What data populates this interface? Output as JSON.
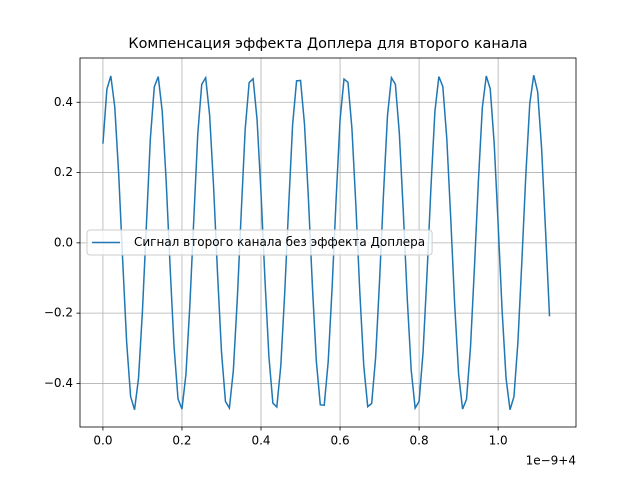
{
  "chart_data": {
    "type": "line",
    "title": "Компенсация эффекта Доплера для  второго канала",
    "x_offset_label": "1e−9+4",
    "x": [
      0,
      0.01,
      0.02,
      0.03,
      0.04,
      0.05,
      0.06,
      0.07,
      0.08,
      0.09,
      0.1,
      0.11,
      0.12,
      0.13,
      0.14,
      0.15,
      0.16,
      0.17,
      0.18,
      0.19,
      0.2,
      0.21,
      0.22,
      0.23,
      0.24,
      0.25,
      0.26,
      0.27,
      0.28,
      0.29,
      0.3,
      0.31,
      0.32,
      0.33,
      0.34,
      0.35,
      0.36,
      0.37,
      0.38,
      0.39,
      0.4,
      0.41,
      0.42,
      0.43,
      0.44,
      0.45,
      0.46,
      0.47,
      0.48,
      0.49,
      0.5,
      0.51,
      0.52,
      0.53,
      0.54,
      0.55,
      0.56,
      0.57,
      0.58,
      0.59,
      0.6,
      0.61,
      0.62,
      0.63,
      0.64,
      0.65,
      0.66,
      0.67,
      0.68,
      0.69,
      0.7,
      0.71,
      0.72,
      0.73,
      0.74,
      0.75,
      0.76,
      0.77,
      0.78,
      0.79,
      0.8,
      0.81,
      0.82,
      0.83,
      0.84,
      0.85,
      0.86,
      0.87,
      0.88,
      0.89,
      0.9,
      0.91,
      0.92,
      0.93,
      0.94,
      0.95,
      0.96,
      0.97,
      0.98,
      0.99,
      1,
      1.01,
      1.02,
      1.03,
      1.04,
      1.05,
      1.06,
      1.07,
      1.08,
      1.09,
      1.1,
      1.11,
      1.12,
      1.13
    ],
    "series": [
      {
        "name": "Сигнал второго канала без эффекта Доплера",
        "color": "#1f77b4",
        "values": [
          0.282,
          0.437,
          0.475,
          0.386,
          0.194,
          -0.051,
          -0.282,
          -0.437,
          -0.475,
          -0.386,
          -0.194,
          0.051,
          0.296,
          0.444,
          0.473,
          0.375,
          0.177,
          -0.069,
          -0.296,
          -0.444,
          -0.473,
          -0.375,
          -0.177,
          0.069,
          0.31,
          0.451,
          0.47,
          0.363,
          0.16,
          -0.087,
          -0.31,
          -0.451,
          -0.47,
          -0.363,
          -0.16,
          0.087,
          0.324,
          0.456,
          0.467,
          0.351,
          0.142,
          -0.105,
          -0.324,
          -0.456,
          -0.467,
          -0.351,
          -0.142,
          0.105,
          0.337,
          0.461,
          0.462,
          0.338,
          0.125,
          -0.123,
          -0.337,
          -0.461,
          -0.462,
          -0.338,
          -0.125,
          0.123,
          0.35,
          0.466,
          0.457,
          0.326,
          0.107,
          -0.141,
          -0.35,
          -0.466,
          -0.457,
          -0.326,
          -0.107,
          0.141,
          0.362,
          0.47,
          0.451,
          0.312,
          0.089,
          -0.158,
          -0.362,
          -0.47,
          -0.451,
          -0.312,
          -0.089,
          0.158,
          0.374,
          0.473,
          0.445,
          0.298,
          0.071,
          -0.175,
          -0.374,
          -0.473,
          -0.445,
          -0.298,
          -0.071,
          0.175,
          0.385,
          0.475,
          0.438,
          0.283,
          0.053,
          -0.192,
          -0.385,
          -0.475,
          -0.438,
          -0.283,
          -0.053,
          0.192,
          0.396,
          0.477,
          0.43,
          0.268,
          0.034,
          -0.209
        ]
      }
    ],
    "xlim": [
      -0.058,
      1.197
    ],
    "ylim": [
      -0.524,
      0.526
    ],
    "xticks": [
      {
        "value": 0,
        "label": "0.0"
      },
      {
        "value": 0.2,
        "label": "0.2"
      },
      {
        "value": 0.4,
        "label": "0.4"
      },
      {
        "value": 0.6,
        "label": "0.6"
      },
      {
        "value": 0.8,
        "label": "0.8"
      },
      {
        "value": 1,
        "label": "1.0"
      }
    ],
    "yticks": [
      {
        "value": -0.4,
        "label": "−0.4"
      },
      {
        "value": -0.2,
        "label": "−0.2"
      },
      {
        "value": 0,
        "label": "0.0"
      },
      {
        "value": 0.2,
        "label": "0.2"
      },
      {
        "value": 0.4,
        "label": "0.4"
      }
    ],
    "grid": true,
    "legend": "center left"
  }
}
